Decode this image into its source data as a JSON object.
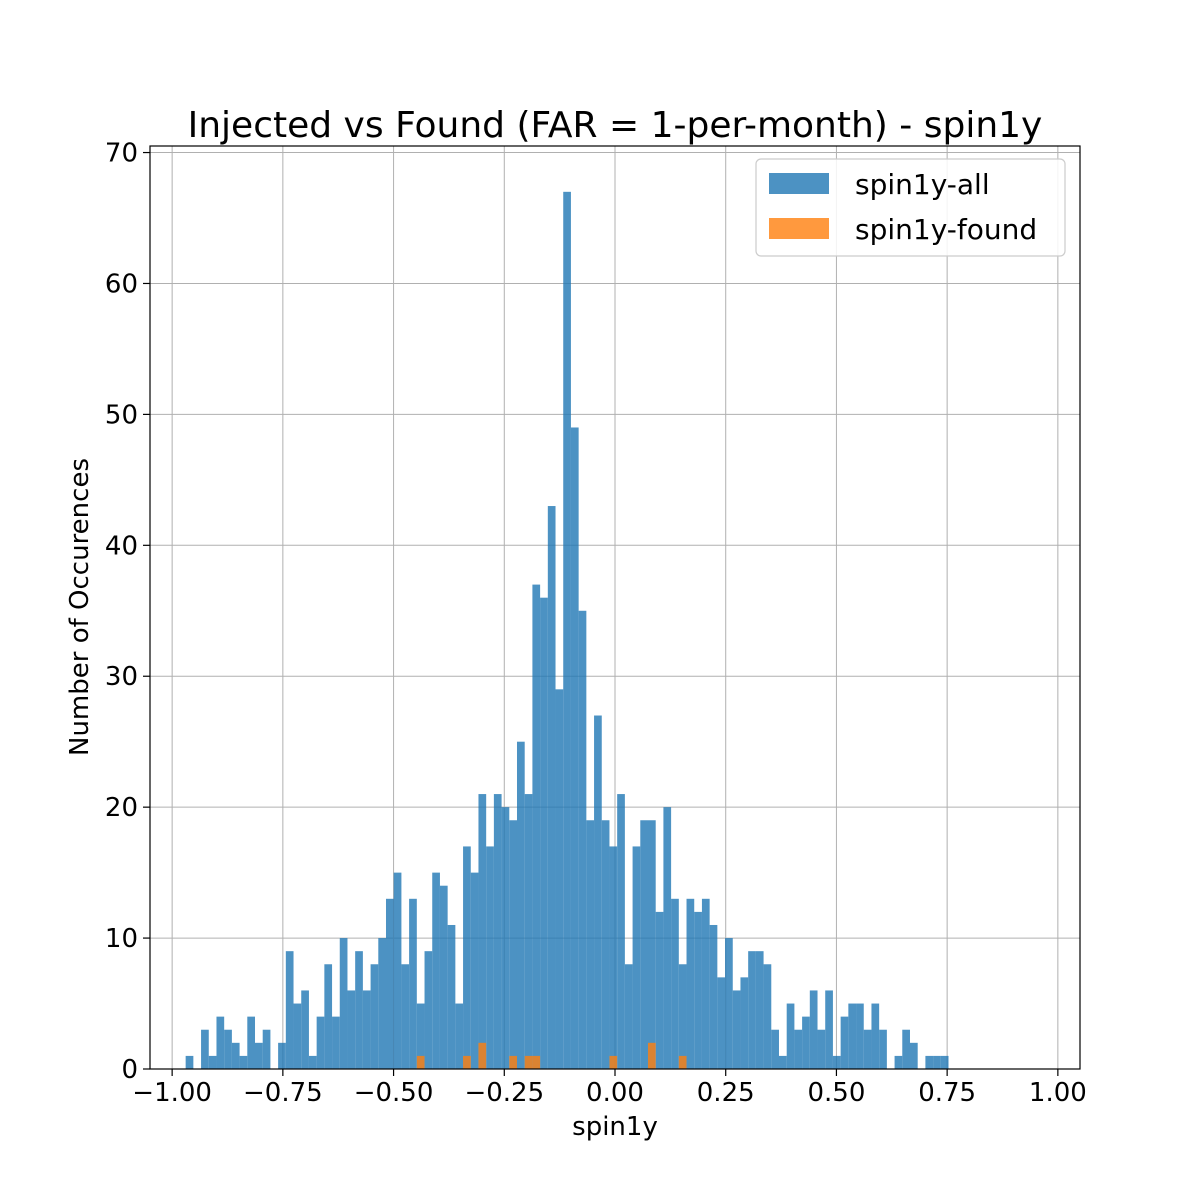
{
  "chart_data": {
    "type": "bar",
    "title": "Injected vs Found (FAR = 1-per-month) - spin1y",
    "xlabel": "spin1y",
    "ylabel": "Number of Occurences",
    "xlim": [
      -1.05,
      1.05
    ],
    "ylim": [
      0,
      70.5
    ],
    "xticks": [
      -1.0,
      -0.75,
      -0.5,
      -0.25,
      0.0,
      0.25,
      0.5,
      0.75,
      1.0
    ],
    "xtick_labels": [
      "−1.00",
      "−0.75",
      "−0.50",
      "−0.25",
      "0.00",
      "0.25",
      "0.50",
      "0.75",
      "1.00"
    ],
    "yticks": [
      0,
      10,
      20,
      30,
      40,
      50,
      60,
      70
    ],
    "ytick_labels": [
      "0",
      "10",
      "20",
      "30",
      "40",
      "50",
      "60",
      "70"
    ],
    "grid": true,
    "legend_position": "top-right",
    "bin_start": -0.9695,
    "bin_width": 0.0174,
    "series": [
      {
        "name": "spin1y-all",
        "color": "#1f77b4",
        "values": [
          1,
          0,
          3,
          1,
          4,
          3,
          2,
          1,
          4,
          2,
          3,
          0,
          2,
          9,
          5,
          6,
          1,
          4,
          8,
          4,
          10,
          6,
          9,
          6,
          8,
          10,
          13,
          15,
          8,
          13,
          5,
          9,
          15,
          14,
          11,
          5,
          17,
          15,
          21,
          17,
          21,
          20,
          19,
          25,
          21,
          37,
          36,
          43,
          29,
          67,
          49,
          35,
          19,
          27,
          19,
          17,
          21,
          8,
          17,
          19,
          19,
          12,
          20,
          13,
          8,
          13,
          12,
          13,
          11,
          7,
          10,
          6,
          7,
          9,
          9,
          8,
          3,
          1,
          5,
          3,
          4,
          6,
          3,
          6,
          1,
          4,
          5,
          5,
          3,
          5,
          3,
          0,
          1,
          3,
          2,
          0,
          1,
          1,
          1
        ]
      },
      {
        "name": "spin1y-found",
        "color": "#ff7f0e",
        "values": [
          0,
          0,
          0,
          0,
          0,
          0,
          0,
          0,
          0,
          0,
          0,
          0,
          0,
          0,
          0,
          0,
          0,
          0,
          0,
          0,
          0,
          0,
          0,
          0,
          0,
          0,
          0,
          0,
          0,
          0,
          1,
          0,
          0,
          0,
          0,
          0,
          1,
          0,
          2,
          0,
          0,
          0,
          1,
          0,
          1,
          1,
          0,
          0,
          0,
          0,
          0,
          0,
          0,
          0,
          0,
          1,
          0,
          0,
          0,
          0,
          2,
          0,
          0,
          0,
          1,
          0,
          0,
          0,
          0,
          0,
          0,
          0,
          0,
          0,
          0,
          0,
          0,
          0,
          0,
          0,
          0,
          0,
          0,
          0,
          0,
          0,
          0,
          0,
          0,
          0,
          0,
          0,
          0,
          0,
          0,
          0,
          0,
          0,
          0
        ]
      }
    ]
  }
}
